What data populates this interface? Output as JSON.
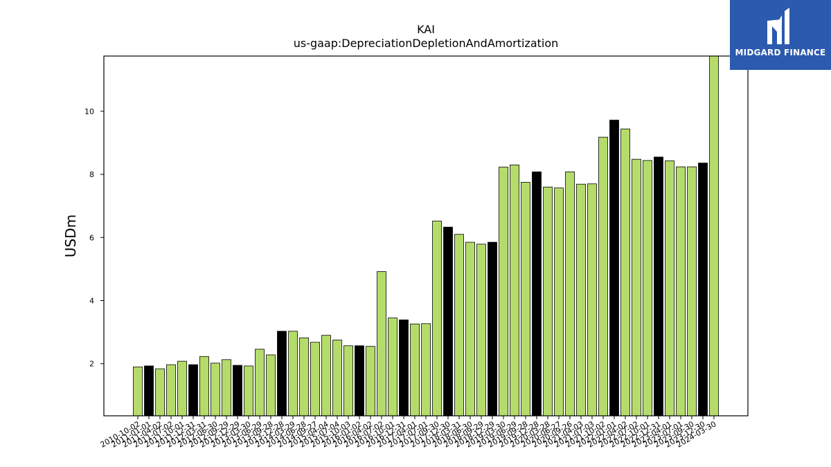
{
  "brand": {
    "name": "MIDGARD FINANCE",
    "logo_icon": "midgard-logo-icon"
  },
  "colors": {
    "bar_default": "#b5dc6b",
    "bar_highlight": "#000000",
    "bar_edge": "#000000",
    "axis": "#000000"
  },
  "chart_data": {
    "type": "bar",
    "title": "KAI",
    "subtitle": "us-gaap:DepreciationDepletionAndAmortization",
    "xlabel": "",
    "ylabel": "USDm",
    "ylim": [
      0.35,
      11.75
    ],
    "yticks": [
      2,
      4,
      6,
      8,
      10
    ],
    "grid": false,
    "categories": [
      "2010-10-02",
      "2011-01-01",
      "2011-04-02",
      "2011-07-02",
      "2011-10-01",
      "2011-12-31",
      "2012-03-31",
      "2012-06-30",
      "2012-09-29",
      "2012-12-29",
      "2013-03-30",
      "2013-06-29",
      "2013-09-28",
      "2013-12-28",
      "2014-03-29",
      "2014-06-28",
      "2014-09-27",
      "2015-04-04",
      "2015-07-04",
      "2015-10-03",
      "2016-01-02",
      "2016-04-02",
      "2016-07-02",
      "2016-10-01",
      "2016-12-31",
      "2017-04-01",
      "2017-07-01",
      "2017-09-30",
      "2017-12-30",
      "2018-03-31",
      "2018-06-30",
      "2018-09-29",
      "2018-12-29",
      "2019-03-30",
      "2019-06-29",
      "2019-09-28",
      "2019-12-28",
      "2020-03-28",
      "2020-06-27",
      "2020-09-26",
      "2021-04-03",
      "2021-07-03",
      "2021-10-02",
      "2022-01-01",
      "2022-04-02",
      "2022-07-02",
      "2022-10-01",
      "2022-12-31",
      "2023-04-01",
      "2023-07-01",
      "2023-09-30",
      "2023-12-30",
      "2024-03-30"
    ],
    "values": [
      1.9,
      1.93,
      1.84,
      1.97,
      2.08,
      1.97,
      2.23,
      2.02,
      2.13,
      1.95,
      1.93,
      2.46,
      2.28,
      3.03,
      3.03,
      2.82,
      2.68,
      2.9,
      2.75,
      2.57,
      2.57,
      2.55,
      4.92,
      3.45,
      3.39,
      3.26,
      3.27,
      6.52,
      6.33,
      6.1,
      5.85,
      5.79,
      5.85,
      8.23,
      8.3,
      7.75,
      8.08,
      7.6,
      7.57,
      8.08,
      7.69,
      7.7,
      9.18,
      9.72,
      9.44,
      8.48,
      8.44,
      8.55,
      8.43,
      8.24,
      8.24,
      8.36,
      11.75
    ],
    "highlight": [
      false,
      true,
      false,
      false,
      false,
      true,
      false,
      false,
      false,
      true,
      false,
      false,
      false,
      true,
      false,
      false,
      false,
      false,
      false,
      false,
      true,
      false,
      false,
      false,
      true,
      false,
      false,
      false,
      true,
      false,
      false,
      false,
      true,
      false,
      false,
      false,
      true,
      false,
      false,
      false,
      false,
      false,
      false,
      true,
      false,
      false,
      false,
      true,
      false,
      false,
      false,
      true,
      false
    ]
  }
}
